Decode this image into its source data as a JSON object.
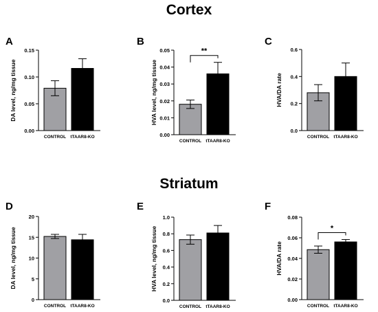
{
  "sections": [
    {
      "title": "Cortex"
    },
    {
      "title": "Striatum"
    }
  ],
  "colors": {
    "control": "#a0a0a4",
    "ko": "#000000"
  },
  "chart_data": [
    {
      "letter": "A",
      "type": "bar",
      "categories": [
        "CONTROL",
        "tTAAR8-KO"
      ],
      "values": [
        0.079,
        0.116
      ],
      "errors": [
        0.014,
        0.018
      ],
      "ylabel": "DA level, ng/mg tissue",
      "ylim": [
        0,
        0.15
      ],
      "yticks": [
        "0.00",
        "0.05",
        "0.10",
        "0.15"
      ],
      "significance": ""
    },
    {
      "letter": "B",
      "type": "bar",
      "categories": [
        "CONTROL",
        "tTAAR8-KO"
      ],
      "values": [
        0.018,
        0.036
      ],
      "errors": [
        0.0025,
        0.0068
      ],
      "ylabel": "HVA level, ng/mg tissue",
      "ylim": [
        0,
        0.05
      ],
      "yticks": [
        "0.00",
        "0.01",
        "0.02",
        "0.03",
        "0.04",
        "0.05"
      ],
      "significance": "**"
    },
    {
      "letter": "C",
      "type": "bar",
      "categories": [
        "CONTROL",
        "tTAAR8-KO"
      ],
      "values": [
        0.28,
        0.4
      ],
      "errors": [
        0.06,
        0.1
      ],
      "ylabel": "HVA/DA rate",
      "ylim": [
        0,
        0.6
      ],
      "yticks": [
        "0.0",
        "0.2",
        "0.4",
        "0.6"
      ],
      "significance": ""
    },
    {
      "letter": "D",
      "type": "bar",
      "categories": [
        "CONTROL",
        "tTAAR8-KO"
      ],
      "values": [
        15.2,
        14.4
      ],
      "errors": [
        0.5,
        1.3
      ],
      "ylabel": "DA level, ng/mg tissue",
      "ylim": [
        0,
        20
      ],
      "yticks": [
        "0",
        "5",
        "10",
        "15",
        "20"
      ],
      "significance": ""
    },
    {
      "letter": "E",
      "type": "bar",
      "categories": [
        "CONTROL",
        "tTAAR8-KO"
      ],
      "values": [
        0.73,
        0.81
      ],
      "errors": [
        0.055,
        0.09
      ],
      "ylabel": "HVA level, ng/mg tissue",
      "ylim": [
        0,
        1.0
      ],
      "yticks": [
        "0.0",
        "0.2",
        "0.4",
        "0.6",
        "0.8",
        "1.0"
      ],
      "significance": ""
    },
    {
      "letter": "F",
      "type": "bar",
      "categories": [
        "CONTROL",
        "tTAAR8-KO"
      ],
      "values": [
        0.0485,
        0.056
      ],
      "errors": [
        0.0035,
        0.0023
      ],
      "ylabel": "HVA/DA rate",
      "ylim": [
        0,
        0.08
      ],
      "yticks": [
        "0.00",
        "0.02",
        "0.04",
        "0.06",
        "0.08"
      ],
      "significance": "*"
    }
  ]
}
